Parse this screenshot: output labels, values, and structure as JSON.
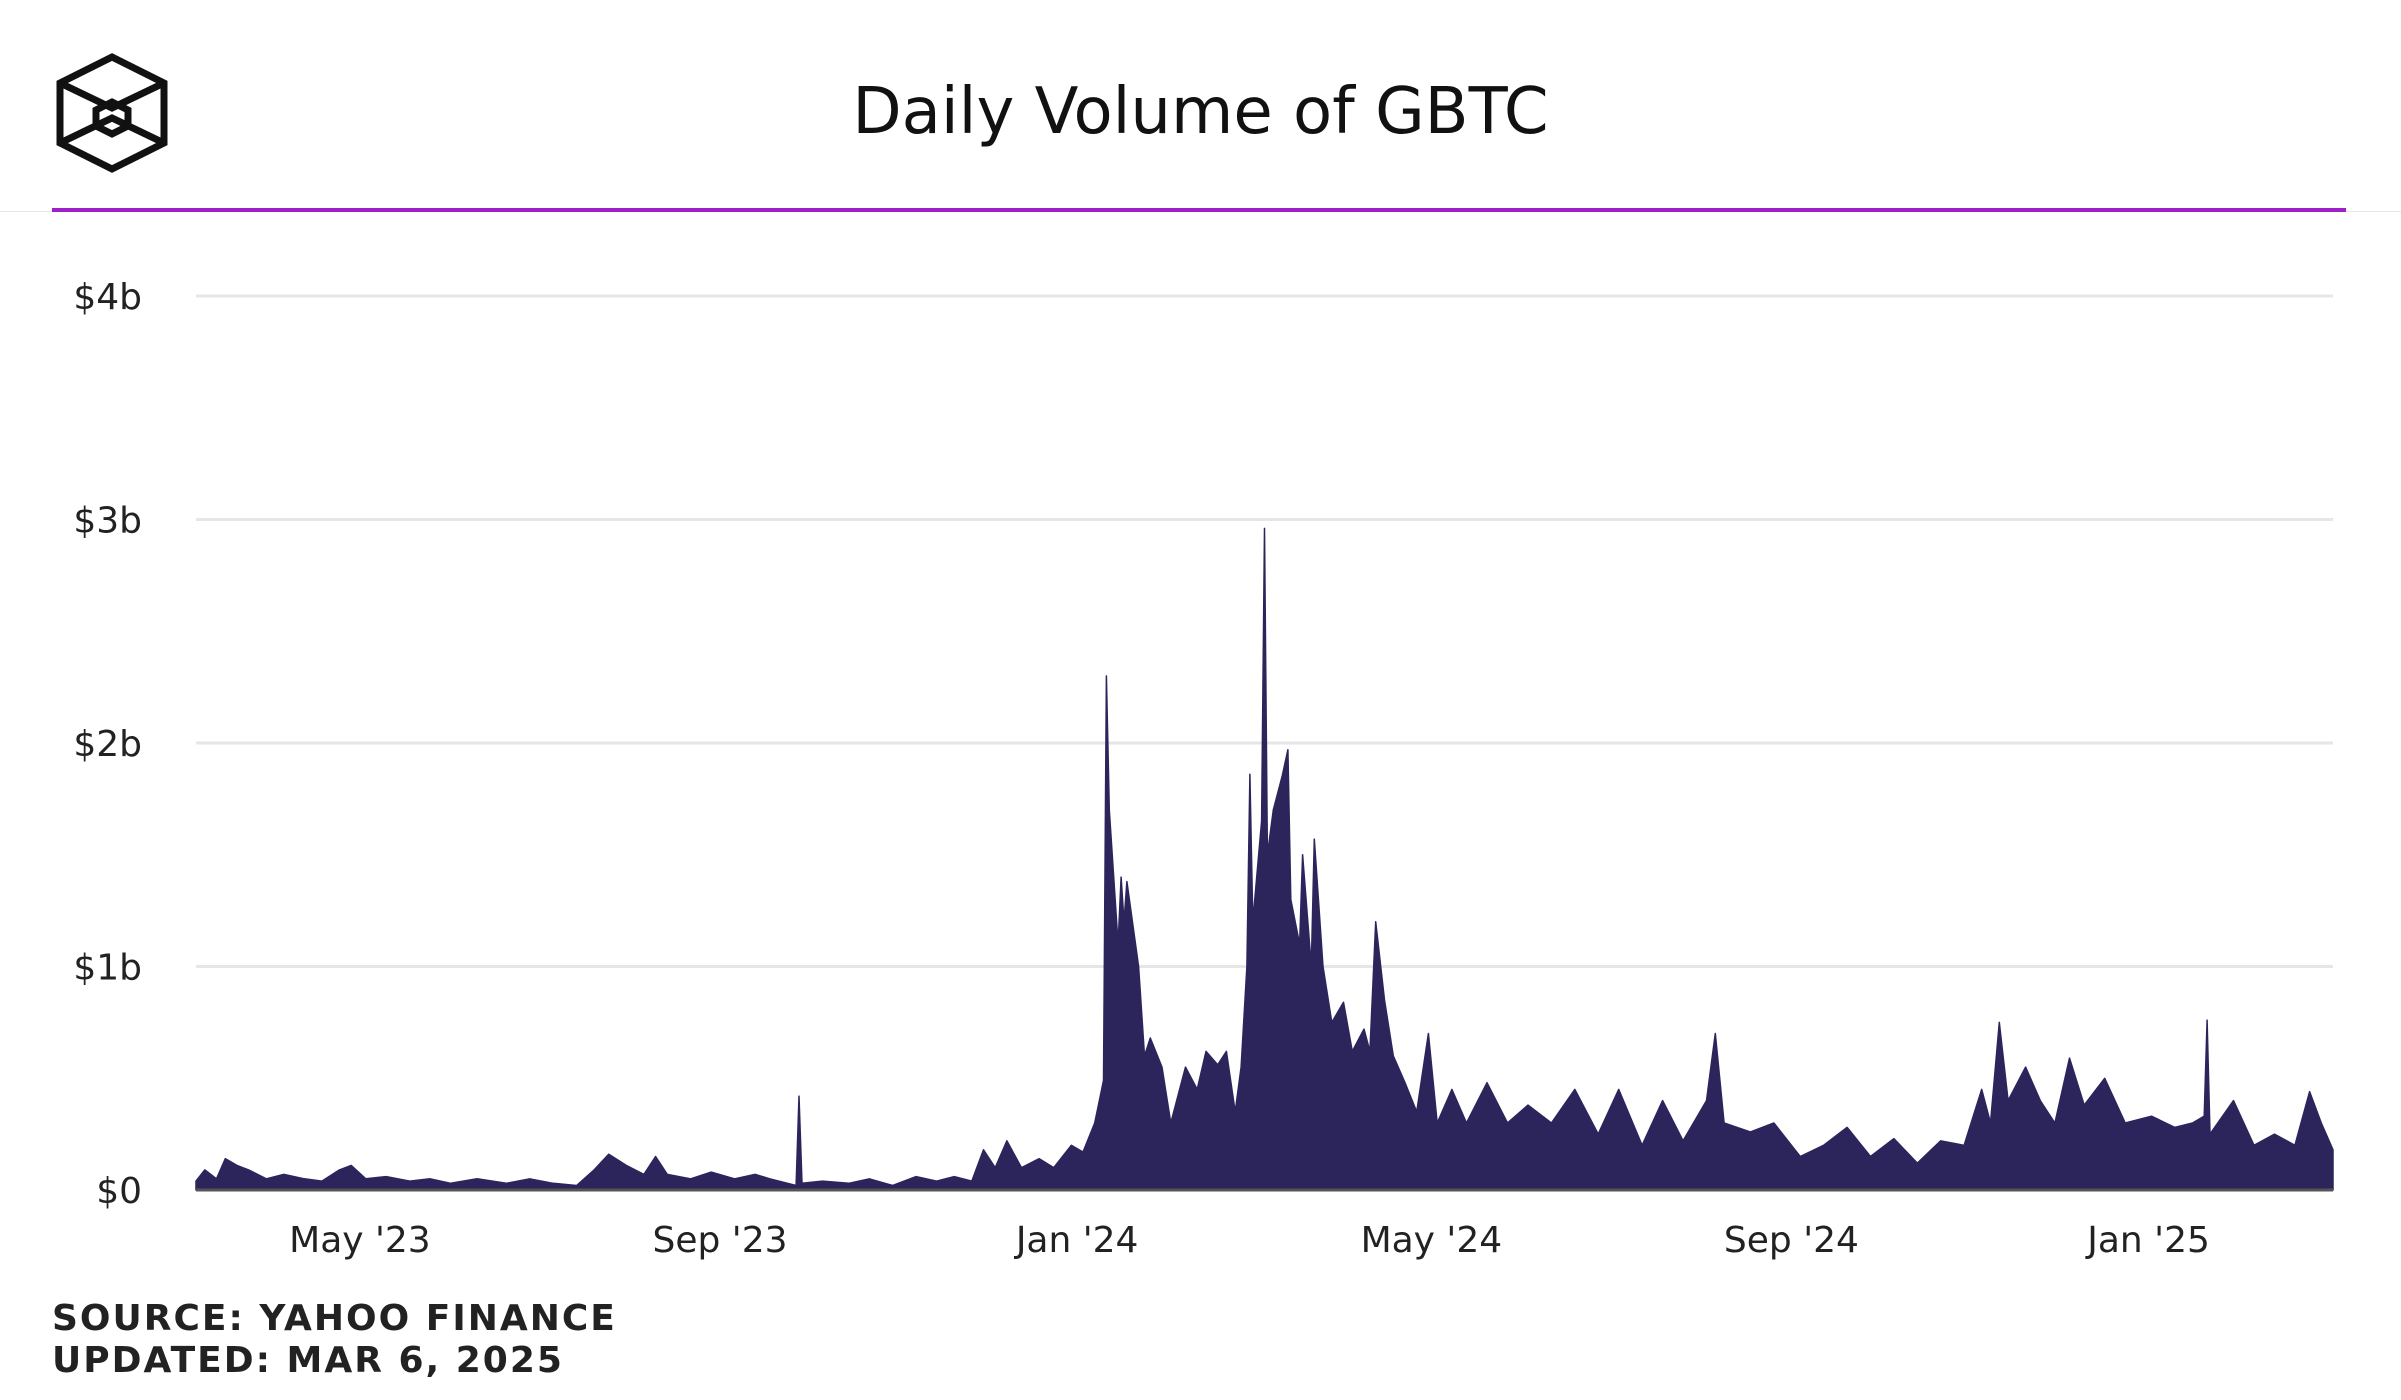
{
  "title": "Daily Volume of GBTC",
  "source": "SOURCE: YAHOO FINANCE",
  "updated": "UPDATED: MAR 6, 2025",
  "colors": {
    "area": "#2c255c",
    "accent": "#a020c8",
    "grid": "#e6e6e6",
    "text": "#222222",
    "logo": "#111111"
  },
  "icons": {
    "logo": "cube-logo-icon"
  },
  "chart_data": {
    "type": "area",
    "title": "Daily Volume of GBTC",
    "xlabel": "",
    "ylabel": "",
    "x_range": [
      "2023-03-06",
      "2025-03-05"
    ],
    "ylim": [
      0,
      4000000000
    ],
    "y_ticks": [
      {
        "value": 0,
        "label": "$0"
      },
      {
        "value": 1000000000,
        "label": "$1b"
      },
      {
        "value": 2000000000,
        "label": "$2b"
      },
      {
        "value": 3000000000,
        "label": "$3b"
      },
      {
        "value": 4000000000,
        "label": "$4b"
      }
    ],
    "x_ticks": [
      {
        "date": "2023-05-01",
        "label": "May '23"
      },
      {
        "date": "2023-09-01",
        "label": "Sep '23"
      },
      {
        "date": "2024-01-01",
        "label": "Jan '24"
      },
      {
        "date": "2024-05-01",
        "label": "May '24"
      },
      {
        "date": "2024-09-01",
        "label": "Sep '24"
      },
      {
        "date": "2025-01-01",
        "label": "Jan '25"
      }
    ],
    "grid": true,
    "legend": "none",
    "series": [
      {
        "values": [
          [
            "2023-03-06",
            40000000
          ],
          [
            "2023-03-09",
            90000000
          ],
          [
            "2023-03-13",
            50000000
          ],
          [
            "2023-03-16",
            140000000
          ],
          [
            "2023-03-20",
            110000000
          ],
          [
            "2023-03-24",
            90000000
          ],
          [
            "2023-03-30",
            50000000
          ],
          [
            "2023-04-05",
            70000000
          ],
          [
            "2023-04-12",
            50000000
          ],
          [
            "2023-04-18",
            40000000
          ],
          [
            "2023-04-24",
            90000000
          ],
          [
            "2023-04-28",
            110000000
          ],
          [
            "2023-05-03",
            50000000
          ],
          [
            "2023-05-10",
            60000000
          ],
          [
            "2023-05-18",
            40000000
          ],
          [
            "2023-05-25",
            50000000
          ],
          [
            "2023-06-01",
            30000000
          ],
          [
            "2023-06-10",
            50000000
          ],
          [
            "2023-06-20",
            30000000
          ],
          [
            "2023-06-28",
            50000000
          ],
          [
            "2023-07-06",
            30000000
          ],
          [
            "2023-07-14",
            20000000
          ],
          [
            "2023-07-20",
            90000000
          ],
          [
            "2023-07-25",
            160000000
          ],
          [
            "2023-07-31",
            110000000
          ],
          [
            "2023-08-06",
            70000000
          ],
          [
            "2023-08-10",
            150000000
          ],
          [
            "2023-08-14",
            70000000
          ],
          [
            "2023-08-22",
            50000000
          ],
          [
            "2023-08-29",
            80000000
          ],
          [
            "2023-09-06",
            50000000
          ],
          [
            "2023-09-13",
            70000000
          ],
          [
            "2023-09-18",
            50000000
          ],
          [
            "2023-09-27",
            20000000
          ],
          [
            "2023-09-28",
            420000000
          ],
          [
            "2023-09-29",
            30000000
          ],
          [
            "2023-10-06",
            40000000
          ],
          [
            "2023-10-15",
            30000000
          ],
          [
            "2023-10-22",
            50000000
          ],
          [
            "2023-10-30",
            20000000
          ],
          [
            "2023-11-07",
            60000000
          ],
          [
            "2023-11-14",
            40000000
          ],
          [
            "2023-11-20",
            60000000
          ],
          [
            "2023-11-26",
            40000000
          ],
          [
            "2023-11-30",
            180000000
          ],
          [
            "2023-12-04",
            100000000
          ],
          [
            "2023-12-08",
            220000000
          ],
          [
            "2023-12-13",
            100000000
          ],
          [
            "2023-12-19",
            140000000
          ],
          [
            "2023-12-24",
            100000000
          ],
          [
            "2023-12-30",
            200000000
          ],
          [
            "2024-01-03",
            170000000
          ],
          [
            "2024-01-07",
            300000000
          ],
          [
            "2024-01-10",
            490000000
          ],
          [
            "2024-01-11",
            2300000000
          ],
          [
            "2024-01-12",
            1700000000
          ],
          [
            "2024-01-15",
            1100000000
          ],
          [
            "2024-01-16",
            1400000000
          ],
          [
            "2024-01-17",
            1200000000
          ],
          [
            "2024-01-18",
            1380000000
          ],
          [
            "2024-01-22",
            1000000000
          ],
          [
            "2024-01-24",
            600000000
          ],
          [
            "2024-01-26",
            680000000
          ],
          [
            "2024-01-30",
            550000000
          ],
          [
            "2024-02-02",
            300000000
          ],
          [
            "2024-02-07",
            550000000
          ],
          [
            "2024-02-11",
            450000000
          ],
          [
            "2024-02-14",
            620000000
          ],
          [
            "2024-02-18",
            560000000
          ],
          [
            "2024-02-21",
            620000000
          ],
          [
            "2024-02-24",
            350000000
          ],
          [
            "2024-02-26",
            550000000
          ],
          [
            "2024-02-28",
            1000000000
          ],
          [
            "2024-02-29",
            1860000000
          ],
          [
            "2024-03-01",
            1200000000
          ],
          [
            "2024-03-04",
            1650000000
          ],
          [
            "2024-03-05",
            2960000000
          ],
          [
            "2024-03-06",
            1500000000
          ],
          [
            "2024-03-08",
            1700000000
          ],
          [
            "2024-03-11",
            1850000000
          ],
          [
            "2024-03-13",
            1970000000
          ],
          [
            "2024-03-14",
            1300000000
          ],
          [
            "2024-03-17",
            1100000000
          ],
          [
            "2024-03-18",
            1500000000
          ],
          [
            "2024-03-21",
            1000000000
          ],
          [
            "2024-03-22",
            1570000000
          ],
          [
            "2024-03-25",
            1000000000
          ],
          [
            "2024-03-28",
            750000000
          ],
          [
            "2024-04-01",
            840000000
          ],
          [
            "2024-04-04",
            620000000
          ],
          [
            "2024-04-08",
            720000000
          ],
          [
            "2024-04-10",
            620000000
          ],
          [
            "2024-04-12",
            1200000000
          ],
          [
            "2024-04-15",
            850000000
          ],
          [
            "2024-04-18",
            600000000
          ],
          [
            "2024-04-22",
            480000000
          ],
          [
            "2024-04-26",
            350000000
          ],
          [
            "2024-04-30",
            700000000
          ],
          [
            "2024-05-03",
            300000000
          ],
          [
            "2024-05-08",
            450000000
          ],
          [
            "2024-05-13",
            300000000
          ],
          [
            "2024-05-20",
            480000000
          ],
          [
            "2024-05-27",
            300000000
          ],
          [
            "2024-06-03",
            380000000
          ],
          [
            "2024-06-11",
            300000000
          ],
          [
            "2024-06-19",
            450000000
          ],
          [
            "2024-06-27",
            250000000
          ],
          [
            "2024-07-04",
            450000000
          ],
          [
            "2024-07-12",
            200000000
          ],
          [
            "2024-07-19",
            400000000
          ],
          [
            "2024-07-26",
            220000000
          ],
          [
            "2024-08-03",
            400000000
          ],
          [
            "2024-08-06",
            700000000
          ],
          [
            "2024-08-09",
            300000000
          ],
          [
            "2024-08-18",
            260000000
          ],
          [
            "2024-08-26",
            300000000
          ],
          [
            "2024-09-04",
            150000000
          ],
          [
            "2024-09-12",
            200000000
          ],
          [
            "2024-09-20",
            280000000
          ],
          [
            "2024-09-28",
            150000000
          ],
          [
            "2024-10-06",
            230000000
          ],
          [
            "2024-10-14",
            120000000
          ],
          [
            "2024-10-22",
            220000000
          ],
          [
            "2024-10-30",
            200000000
          ],
          [
            "2024-11-05",
            450000000
          ],
          [
            "2024-11-08",
            300000000
          ],
          [
            "2024-11-11",
            750000000
          ],
          [
            "2024-11-14",
            400000000
          ],
          [
            "2024-11-20",
            550000000
          ],
          [
            "2024-11-25",
            400000000
          ],
          [
            "2024-11-30",
            300000000
          ],
          [
            "2024-12-05",
            590000000
          ],
          [
            "2024-12-10",
            380000000
          ],
          [
            "2024-12-17",
            500000000
          ],
          [
            "2024-12-24",
            300000000
          ],
          [
            "2025-01-02",
            330000000
          ],
          [
            "2025-01-10",
            280000000
          ],
          [
            "2025-01-16",
            300000000
          ],
          [
            "2025-01-20",
            330000000
          ],
          [
            "2025-01-21",
            760000000
          ],
          [
            "2025-01-22",
            250000000
          ],
          [
            "2025-01-30",
            400000000
          ],
          [
            "2025-02-06",
            200000000
          ],
          [
            "2025-02-13",
            250000000
          ],
          [
            "2025-02-20",
            200000000
          ],
          [
            "2025-02-25",
            440000000
          ],
          [
            "2025-03-01",
            300000000
          ],
          [
            "2025-03-05",
            180000000
          ]
        ]
      }
    ]
  }
}
